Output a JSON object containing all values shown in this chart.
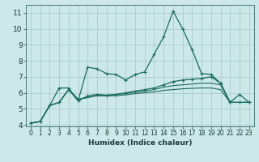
{
  "xlabel": "Humidex (Indice chaleur)",
  "xlim": [
    -0.5,
    23.5
  ],
  "ylim": [
    3.9,
    11.5
  ],
  "yticks": [
    4,
    5,
    6,
    7,
    8,
    9,
    10,
    11
  ],
  "xticks": [
    0,
    1,
    2,
    3,
    4,
    5,
    6,
    7,
    8,
    9,
    10,
    11,
    12,
    13,
    14,
    15,
    16,
    17,
    18,
    19,
    20,
    21,
    22,
    23
  ],
  "background_color": "#cce8e8",
  "grid_color": "#aacccc",
  "line_color": "#1a6b60",
  "lines": [
    [
      4.1,
      4.2,
      5.2,
      6.3,
      6.3,
      5.5,
      7.6,
      7.5,
      7.2,
      7.15,
      6.8,
      7.15,
      7.3,
      8.4,
      9.5,
      11.1,
      10.0,
      8.7,
      7.2,
      7.15,
      6.6,
      5.4,
      5.9,
      5.4
    ],
    [
      4.1,
      4.2,
      5.2,
      5.4,
      6.2,
      5.5,
      5.8,
      5.9,
      5.85,
      5.9,
      6.0,
      6.1,
      6.2,
      6.3,
      6.5,
      6.7,
      6.8,
      6.85,
      6.9,
      7.0,
      6.6,
      5.4,
      5.4,
      5.4
    ],
    [
      4.1,
      4.2,
      5.2,
      5.4,
      6.2,
      5.6,
      5.7,
      5.85,
      5.85,
      5.9,
      5.95,
      6.05,
      6.1,
      6.2,
      6.35,
      6.45,
      6.5,
      6.55,
      6.6,
      6.6,
      6.5,
      5.4,
      5.4,
      5.4
    ],
    [
      4.1,
      4.2,
      5.2,
      5.4,
      6.2,
      5.6,
      5.7,
      5.82,
      5.8,
      5.82,
      5.87,
      5.95,
      6.0,
      6.05,
      6.15,
      6.2,
      6.25,
      6.28,
      6.3,
      6.3,
      6.2,
      5.4,
      5.4,
      5.4
    ]
  ],
  "marker_lines": [
    0,
    1
  ],
  "smooth_lines": [
    2,
    3
  ]
}
